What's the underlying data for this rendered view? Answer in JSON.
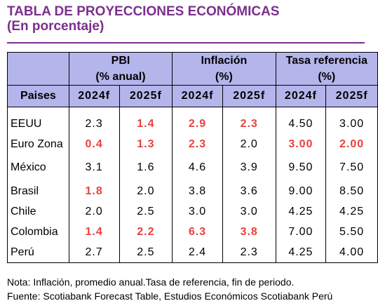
{
  "title": {
    "line1": "TABLA DE PROYECCIONES ECONÓMICAS",
    "line2": "(En porcentaje)"
  },
  "table": {
    "groups": [
      {
        "name": "PBI",
        "unit": "(% anual)"
      },
      {
        "name": "Inflación",
        "unit": "(%)"
      },
      {
        "name": "Tasa referencia",
        "unit": "(%)"
      }
    ],
    "column_header": "Paises",
    "years": [
      "2024f",
      "2025f",
      "2024f",
      "2025f",
      "2024f",
      "2025f"
    ],
    "rows": [
      {
        "country": "EEUU",
        "values": [
          {
            "v": "2.3",
            "hl": false
          },
          {
            "v": "1.4",
            "hl": true
          },
          {
            "v": "2.9",
            "hl": true
          },
          {
            "v": "2.3",
            "hl": true
          },
          {
            "v": "4.50",
            "hl": false
          },
          {
            "v": "3.00",
            "hl": false
          }
        ]
      },
      {
        "country": "Euro Zona",
        "values": [
          {
            "v": "0.4",
            "hl": true
          },
          {
            "v": "1.3",
            "hl": true
          },
          {
            "v": "2.3",
            "hl": true
          },
          {
            "v": "2.0",
            "hl": false
          },
          {
            "v": "3.00",
            "hl": true
          },
          {
            "v": "2.00",
            "hl": true
          }
        ]
      },
      {
        "country": "México",
        "values": [
          {
            "v": "3.1",
            "hl": false
          },
          {
            "v": "1.6",
            "hl": false
          },
          {
            "v": "4.6",
            "hl": false
          },
          {
            "v": "3.9",
            "hl": false
          },
          {
            "v": "9.50",
            "hl": false
          },
          {
            "v": "7.50",
            "hl": false
          }
        ]
      },
      {
        "country": "Brasil",
        "values": [
          {
            "v": "1.8",
            "hl": true
          },
          {
            "v": "2.0",
            "hl": false
          },
          {
            "v": "3.8",
            "hl": false
          },
          {
            "v": "3.6",
            "hl": false
          },
          {
            "v": "9.00",
            "hl": false
          },
          {
            "v": "8.50",
            "hl": false
          }
        ]
      },
      {
        "country": "Chile",
        "values": [
          {
            "v": "2.0",
            "hl": false
          },
          {
            "v": "2.5",
            "hl": false
          },
          {
            "v": "3.0",
            "hl": false
          },
          {
            "v": "3.0",
            "hl": false
          },
          {
            "v": "4.25",
            "hl": false
          },
          {
            "v": "4.25",
            "hl": false
          }
        ]
      },
      {
        "country": "Colombia",
        "values": [
          {
            "v": "1.4",
            "hl": true
          },
          {
            "v": "2.2",
            "hl": true
          },
          {
            "v": "6.3",
            "hl": true
          },
          {
            "v": "3.8",
            "hl": true
          },
          {
            "v": "7.00",
            "hl": false
          },
          {
            "v": "5.50",
            "hl": false
          }
        ]
      },
      {
        "country": "Perú",
        "values": [
          {
            "v": "2.7",
            "hl": false
          },
          {
            "v": "2.5",
            "hl": false
          },
          {
            "v": "2.4",
            "hl": false
          },
          {
            "v": "2.3",
            "hl": false
          },
          {
            "v": "4.25",
            "hl": false
          },
          {
            "v": "4.00",
            "hl": false
          }
        ]
      }
    ]
  },
  "notes": {
    "note": "Nota: Inflación, promedio anual.Tasa de referencia, fin de periodo.",
    "source": "Fuente: Scotiabank Forecast Table, Estudios Económicos Scotiabank Perú"
  },
  "colors": {
    "title": "#7b2f8e",
    "header_bg": "#b4b5eb",
    "highlight": "#e8413c"
  }
}
